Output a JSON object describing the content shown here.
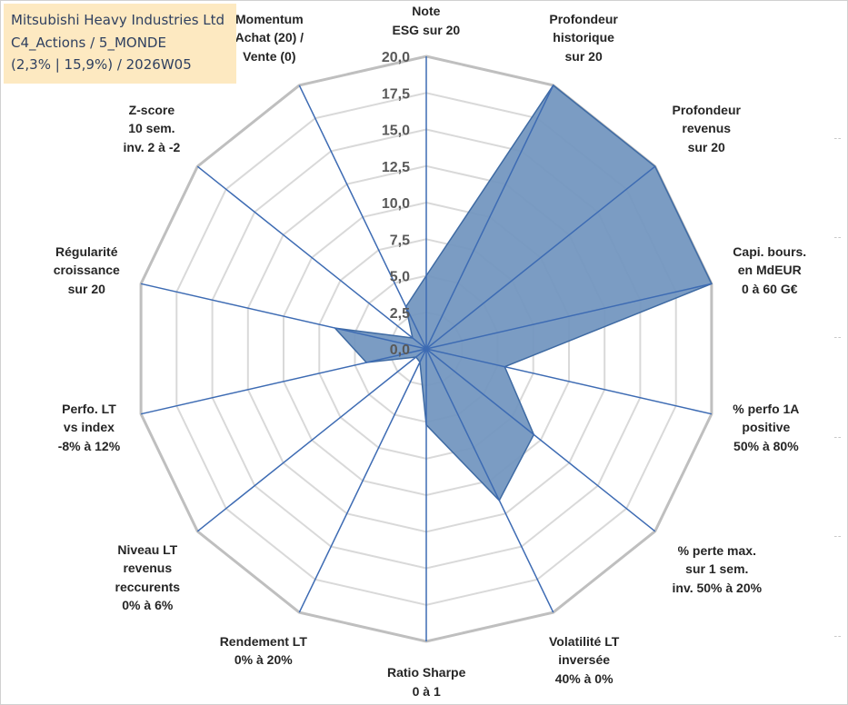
{
  "info_box": {
    "line1": "Mitsubishi Heavy Industries Ltd",
    "line2": "C4_Actions / 5_MONDE",
    "line3": "(2,3% | 15,9%) / 2026W05"
  },
  "colors": {
    "area_fill": "#7194be",
    "area_stroke": "#3e6aa3",
    "spoke": "#3d6bb3",
    "grid_outer": "#bfbfbf",
    "grid_inner": "#d9d9d9",
    "info_bg": "#fde9c1",
    "info_text": "#2f4060"
  },
  "chart_data": {
    "type": "radar",
    "rmin": 0,
    "rmax": 20,
    "tick_labels": [
      "0,0",
      "2,5",
      "5,0",
      "7,5",
      "10,0",
      "12,5",
      "15,0",
      "17,5",
      "20,0"
    ],
    "axes": [
      {
        "lines": [
          "Note",
          "ESG sur 20"
        ],
        "value": 5.0
      },
      {
        "lines": [
          "Profondeur",
          "historique",
          "sur 20"
        ],
        "value": 20.0
      },
      {
        "lines": [
          "Profondeur",
          "revenus",
          "sur 20"
        ],
        "value": 20.0
      },
      {
        "lines": [
          "Capi. bours.",
          "en MdEUR",
          "0 à 60 G€"
        ],
        "value": 20.0
      },
      {
        "lines": [
          "% perfo 1A",
          "positive",
          "50% à 80%"
        ],
        "value": 5.5
      },
      {
        "lines": [
          "% perte max.",
          "sur 1 sem.",
          "inv. 50% à 20%"
        ],
        "value": 9.4
      },
      {
        "lines": [
          "Volatilité LT",
          "inversée",
          "40% à 0%"
        ],
        "value": 11.5
      },
      {
        "lines": [
          "Ratio Sharpe",
          "0 à 1"
        ],
        "value": 5.2
      },
      {
        "lines": [
          "Rendement LT",
          "0% à 20%"
        ],
        "value": 1.0
      },
      {
        "lines": [
          "Niveau LT",
          "revenus",
          "reccurents",
          "0% à 6%"
        ],
        "value": 0.9
      },
      {
        "lines": [
          "Perfo. LT",
          "vs index",
          "-8% à 12%"
        ],
        "value": 4.2
      },
      {
        "lines": [
          "Régularité",
          "croissance",
          "sur 20"
        ],
        "value": 6.4
      },
      {
        "lines": [
          "Z-score",
          "10 sem.",
          "inv. 2 à -2"
        ],
        "value": 1.2
      },
      {
        "lines": [
          "Momentum",
          "Achat (20) /",
          "Vente (0)"
        ],
        "value": 3.2
      }
    ]
  }
}
